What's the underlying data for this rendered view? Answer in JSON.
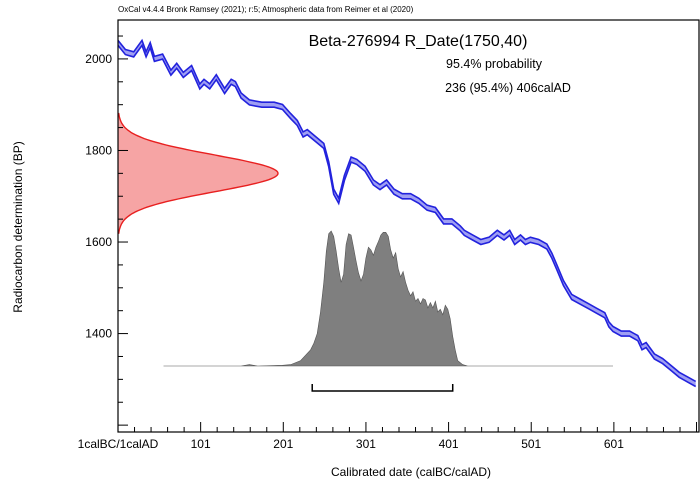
{
  "chart_data": {
    "type": "area",
    "credit": "OxCal v4.4.4 Bronk Ramsey (2021); r:5; Atmospheric data from Reimer et al (2020)",
    "title": "Beta-276994 R_Date(1750,40)",
    "probability_label": "95.4% probability",
    "range_label": "236 (95.4%) 406calAD",
    "xlabel": "Calibrated date (calBC/calAD)",
    "ylabel": "Radiocarbon determination (BP)",
    "xlim": [
      1,
      704
    ],
    "ylim": [
      1185,
      2085
    ],
    "x_ticks": [
      {
        "value": 1,
        "label": "1calBC/1calAD"
      },
      {
        "value": 101,
        "label": "101"
      },
      {
        "value": 201,
        "label": "201"
      },
      {
        "value": 301,
        "label": "301"
      },
      {
        "value": 401,
        "label": "401"
      },
      {
        "value": 501,
        "label": "501"
      },
      {
        "value": 601,
        "label": "601"
      }
    ],
    "y_ticks": [
      {
        "value": 1400,
        "label": "1400"
      },
      {
        "value": 1600,
        "label": "1600"
      },
      {
        "value": 1800,
        "label": "1800"
      },
      {
        "value": 2000,
        "label": "2000"
      }
    ],
    "calibration_curve": {
      "color": "#2222dd",
      "fill": "#9f9ff3",
      "band_width_bp": 11,
      "x": [
        1,
        10,
        20,
        30,
        35,
        40,
        45,
        55,
        65,
        72,
        80,
        90,
        100,
        105,
        112,
        120,
        130,
        138,
        143,
        150,
        160,
        175,
        190,
        200,
        210,
        218,
        225,
        230,
        240,
        250,
        256,
        262,
        268,
        275,
        283,
        290,
        300,
        310,
        318,
        326,
        335,
        345,
        355,
        365,
        375,
        385,
        395,
        405,
        415,
        420,
        430,
        440,
        450,
        460,
        468,
        475,
        481,
        488,
        494,
        500,
        510,
        520,
        526,
        532,
        540,
        550,
        560,
        570,
        580,
        590,
        595,
        600,
        610,
        620,
        630,
        635,
        640,
        650,
        660,
        670,
        680,
        690,
        700
      ],
      "y": [
        2035,
        2015,
        2010,
        2035,
        2010,
        2030,
        2000,
        2005,
        1970,
        1985,
        1965,
        1980,
        1940,
        1950,
        1940,
        1960,
        1930,
        1950,
        1945,
        1920,
        1905,
        1900,
        1900,
        1895,
        1875,
        1860,
        1835,
        1840,
        1825,
        1810,
        1770,
        1710,
        1690,
        1740,
        1780,
        1775,
        1760,
        1730,
        1720,
        1730,
        1710,
        1700,
        1700,
        1690,
        1675,
        1670,
        1645,
        1645,
        1630,
        1620,
        1610,
        1600,
        1605,
        1620,
        1610,
        1620,
        1600,
        1610,
        1600,
        1605,
        1600,
        1590,
        1570,
        1545,
        1510,
        1480,
        1470,
        1460,
        1450,
        1440,
        1420,
        1410,
        1400,
        1400,
        1390,
        1370,
        1375,
        1350,
        1340,
        1325,
        1310,
        1300,
        1290
      ]
    },
    "radiocarbon_distribution": {
      "color": "#e82020",
      "fill": "#f6a4a4",
      "mean_bp": 1750,
      "sd_bp": 40
    },
    "calibrated_distribution": {
      "fill": "#7f7f7f",
      "x": [
        56,
        100,
        150,
        160,
        170,
        200,
        210,
        222,
        228,
        234,
        238,
        242,
        246,
        250,
        253,
        256,
        259,
        262,
        265,
        268,
        271,
        274,
        277,
        280,
        283,
        286,
        289,
        292,
        295,
        298,
        301,
        304,
        307,
        310,
        313,
        316,
        319,
        322,
        325,
        328,
        331,
        334,
        337,
        340,
        343,
        346,
        349,
        352,
        355,
        358,
        361,
        364,
        367,
        370,
        373,
        376,
        379,
        382,
        385,
        388,
        391,
        394,
        397,
        400,
        403,
        406,
        409,
        412,
        418,
        424,
        430,
        600
      ],
      "y": [
        0,
        0,
        0,
        0.01,
        0,
        0.005,
        0.01,
        0.04,
        0.08,
        0.12,
        0.17,
        0.24,
        0.4,
        0.62,
        0.85,
        0.98,
        1.0,
        0.96,
        0.85,
        0.72,
        0.62,
        0.68,
        0.9,
        0.98,
        0.97,
        0.88,
        0.78,
        0.69,
        0.63,
        0.68,
        0.8,
        0.88,
        0.86,
        0.82,
        0.88,
        0.92,
        0.97,
        0.99,
        0.99,
        0.96,
        0.86,
        0.8,
        0.84,
        0.72,
        0.66,
        0.7,
        0.62,
        0.56,
        0.52,
        0.55,
        0.48,
        0.5,
        0.46,
        0.5,
        0.49,
        0.43,
        0.47,
        0.43,
        0.48,
        0.4,
        0.42,
        0.38,
        0.45,
        0.42,
        0.35,
        0.22,
        0.12,
        0.04,
        0.01,
        0,
        0,
        0
      ]
    },
    "range_bar": {
      "from": 236,
      "to": 406
    },
    "grid": false
  }
}
